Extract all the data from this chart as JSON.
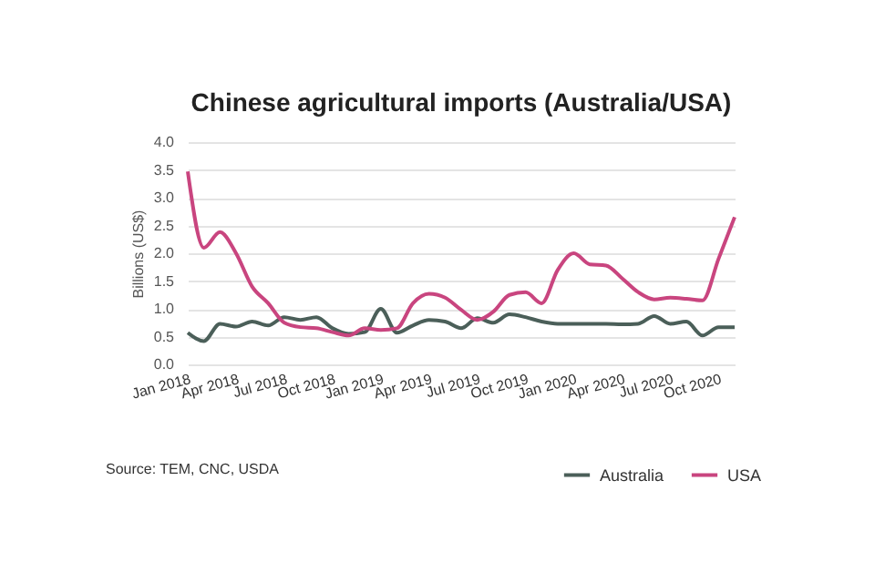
{
  "chart_data": {
    "type": "line",
    "title": "Chinese agricultural imports (Australia/USA)",
    "ylabel": "Billions (US$)",
    "categories": [
      "Jan 2018",
      null,
      null,
      "Apr 2018",
      null,
      null,
      "Jul 2018",
      null,
      null,
      "Oct 2018",
      null,
      null,
      "Jan 2019",
      null,
      null,
      "Apr 2019",
      null,
      null,
      "Jul 2019",
      null,
      null,
      "Oct 2019",
      null,
      null,
      "Jan 2020",
      null,
      null,
      "Apr 2020",
      null,
      null,
      "Jul 2020",
      null,
      null,
      "Oct 2020",
      null
    ],
    "series": [
      {
        "name": "Australia",
        "color": "#4b5f59",
        "values": [
          0.57,
          0.42,
          0.73,
          0.68,
          0.77,
          0.7,
          0.85,
          0.8,
          0.85,
          0.65,
          0.55,
          0.58,
          1.0,
          0.57,
          0.7,
          0.8,
          0.77,
          0.65,
          0.83,
          0.75,
          0.9,
          0.85,
          0.77,
          0.73,
          0.73,
          0.73,
          0.73,
          0.72,
          0.73,
          0.87,
          0.73,
          0.77,
          0.52,
          0.67,
          0.67
        ]
      },
      {
        "name": "USA",
        "color": "#c9457f",
        "values": [
          3.47,
          2.1,
          2.38,
          2.0,
          1.4,
          1.1,
          0.75,
          0.67,
          0.65,
          0.58,
          0.52,
          0.65,
          0.62,
          0.65,
          1.1,
          1.27,
          1.2,
          0.98,
          0.8,
          0.95,
          1.25,
          1.3,
          1.1,
          1.7,
          2.0,
          1.8,
          1.78,
          1.55,
          1.3,
          1.17,
          1.2,
          1.18,
          1.15,
          1.9,
          2.65
        ]
      }
    ],
    "ylim": [
      0,
      4
    ],
    "yticks": [
      {
        "value": 0,
        "label": "0.0"
      },
      {
        "value": 0.5,
        "label": "0.5"
      },
      {
        "value": 1,
        "label": "1.0"
      },
      {
        "value": 1.5,
        "label": "1.5"
      },
      {
        "value": 2,
        "label": "2.0"
      },
      {
        "value": 2.5,
        "label": "2.5"
      },
      {
        "value": 3,
        "label": "3.0"
      },
      {
        "value": 3.5,
        "label": "3.5"
      },
      {
        "value": 4,
        "label": "4.0"
      }
    ],
    "grid": "y",
    "legend": "bottom right",
    "marker": "none",
    "line_style": "solid",
    "annotations": [
      "Source: TEM, CNC, USDA"
    ]
  }
}
